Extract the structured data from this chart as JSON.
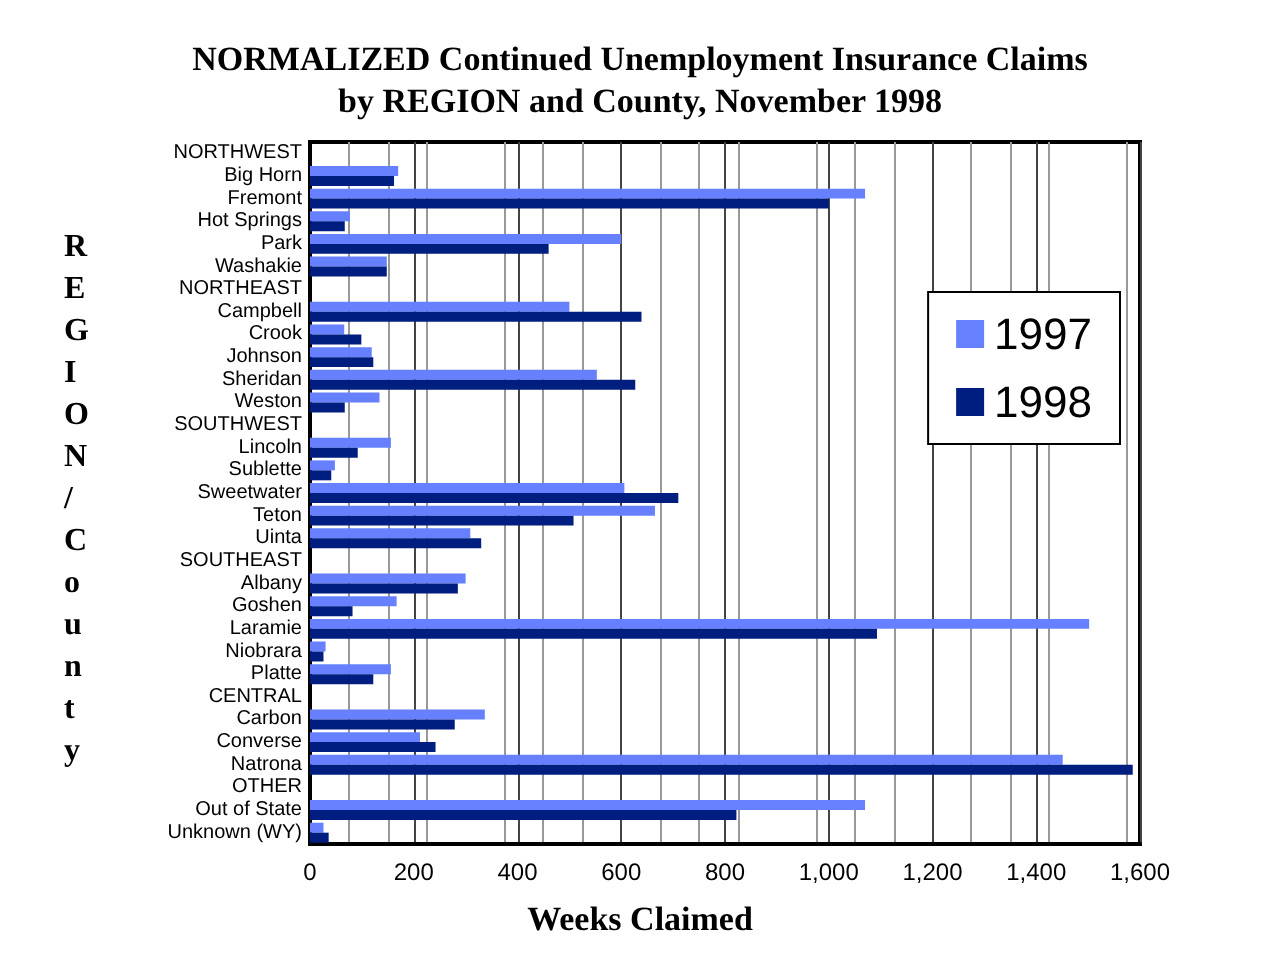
{
  "chart_data": {
    "type": "bar",
    "orientation": "horizontal",
    "title": "NORMALIZED Continued Unemployment Insurance Claims\nby REGION and County, November 1998",
    "xlabel": "Weeks Claimed",
    "ylabel": "REGION/County",
    "categories": [
      "NORTHWEST",
      "Big Horn",
      "Fremont",
      "Hot Springs",
      "Park",
      "Washakie",
      "NORTHEAST",
      "Campbell",
      "Crook",
      "Johnson",
      "Sheridan",
      "Weston",
      "SOUTHWEST",
      "Lincoln",
      "Sublette",
      "Sweetwater",
      "Teton",
      "Uinta",
      "SOUTHEAST",
      "Albany",
      "Goshen",
      "Laramie",
      "Niobrara",
      "Platte",
      "CENTRAL",
      "Carbon",
      "Converse",
      "Natrona",
      "OTHER",
      "Out of State",
      "Unknown (WY)"
    ],
    "series": [
      {
        "name": "1997",
        "color": "#6680ff",
        "values": [
          null,
          170,
          1070,
          77,
          600,
          148,
          null,
          500,
          66,
          119,
          553,
          134,
          null,
          156,
          48,
          606,
          665,
          309,
          null,
          300,
          167,
          1502,
          30,
          156,
          null,
          337,
          212,
          1451,
          null,
          1070,
          26
        ]
      },
      {
        "name": "1998",
        "color": "#001e80",
        "values": [
          null,
          162,
          1000,
          67,
          460,
          148,
          null,
          639,
          99,
          122,
          627,
          67,
          null,
          92,
          41,
          710,
          508,
          330,
          null,
          285,
          82,
          1093,
          26,
          122,
          null,
          279,
          242,
          1586,
          null,
          822,
          36
        ]
      }
    ],
    "xlim": [
      0,
      1600
    ],
    "xticks": [
      0,
      {
        "value": 200,
        "label": "200"
      },
      {
        "value": 400,
        "label": "400"
      },
      {
        "value": 600,
        "label": "600"
      },
      {
        "value": 800,
        "label": "800"
      },
      {
        "value": 1000,
        "label": "1,000"
      },
      {
        "value": 1200,
        "label": "1,200"
      },
      {
        "value": 1400,
        "label": "1,400"
      },
      {
        "value": 1600,
        "label": "1,600"
      }
    ],
    "grid": "x",
    "legend": "right"
  }
}
